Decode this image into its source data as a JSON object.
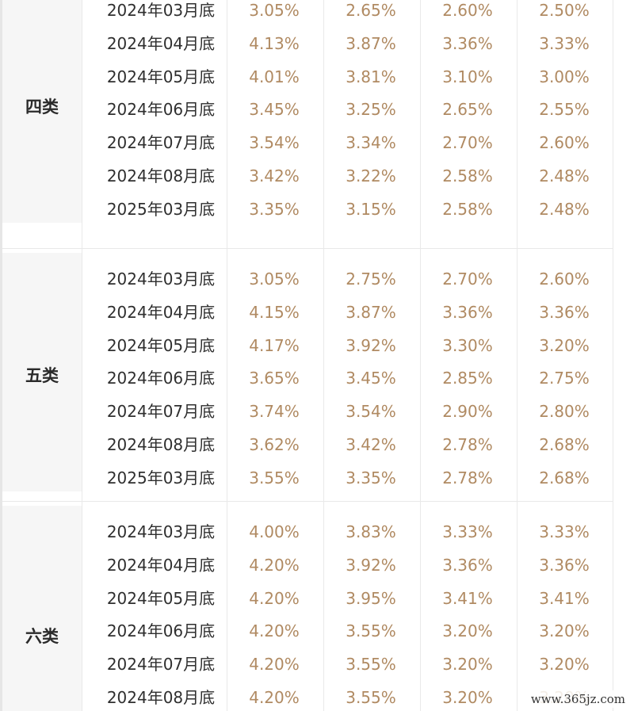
{
  "groups": [
    {
      "category": "四类",
      "rows": [
        {
          "date": "2024年03月底",
          "v1": "3.05%",
          "v2": "2.65%",
          "v3": "2.60%",
          "v4": "2.50%"
        },
        {
          "date": "2024年04月底",
          "v1": "4.13%",
          "v2": "3.87%",
          "v3": "3.36%",
          "v4": "3.33%"
        },
        {
          "date": "2024年05月底",
          "v1": "4.01%",
          "v2": "3.81%",
          "v3": "3.10%",
          "v4": "3.00%"
        },
        {
          "date": "2024年06月底",
          "v1": "3.45%",
          "v2": "3.25%",
          "v3": "2.65%",
          "v4": "2.55%"
        },
        {
          "date": "2024年07月底",
          "v1": "3.54%",
          "v2": "3.34%",
          "v3": "2.70%",
          "v4": "2.60%"
        },
        {
          "date": "2024年08月底",
          "v1": "3.42%",
          "v2": "3.22%",
          "v3": "2.58%",
          "v4": "2.48%"
        },
        {
          "date": "2025年03月底",
          "v1": "3.35%",
          "v2": "3.15%",
          "v3": "2.58%",
          "v4": "2.48%"
        }
      ]
    },
    {
      "category": "五类",
      "rows": [
        {
          "date": "2024年03月底",
          "v1": "3.05%",
          "v2": "2.75%",
          "v3": "2.70%",
          "v4": "2.60%"
        },
        {
          "date": "2024年04月底",
          "v1": "4.15%",
          "v2": "3.87%",
          "v3": "3.36%",
          "v4": "3.36%"
        },
        {
          "date": "2024年05月底",
          "v1": "4.17%",
          "v2": "3.92%",
          "v3": "3.30%",
          "v4": "3.20%"
        },
        {
          "date": "2024年06月底",
          "v1": "3.65%",
          "v2": "3.45%",
          "v3": "2.85%",
          "v4": "2.75%"
        },
        {
          "date": "2024年07月底",
          "v1": "3.74%",
          "v2": "3.54%",
          "v3": "2.90%",
          "v4": "2.80%"
        },
        {
          "date": "2024年08月底",
          "v1": "3.62%",
          "v2": "3.42%",
          "v3": "2.78%",
          "v4": "2.68%"
        },
        {
          "date": "2025年03月底",
          "v1": "3.55%",
          "v2": "3.35%",
          "v3": "2.78%",
          "v4": "2.68%"
        }
      ]
    },
    {
      "category": "六类",
      "rows": [
        {
          "date": "2024年03月底",
          "v1": "4.00%",
          "v2": "3.83%",
          "v3": "3.33%",
          "v4": "3.33%"
        },
        {
          "date": "2024年04月底",
          "v1": "4.20%",
          "v2": "3.92%",
          "v3": "3.36%",
          "v4": "3.36%"
        },
        {
          "date": "2024年05月底",
          "v1": "4.20%",
          "v2": "3.95%",
          "v3": "3.41%",
          "v4": "3.41%"
        },
        {
          "date": "2024年06月底",
          "v1": "4.20%",
          "v2": "3.55%",
          "v3": "3.20%",
          "v4": "3.20%"
        },
        {
          "date": "2024年07月底",
          "v1": "4.20%",
          "v2": "3.55%",
          "v3": "3.20%",
          "v4": "3.20%"
        },
        {
          "date": "2024年08月底",
          "v1": "4.20%",
          "v2": "3.55%",
          "v3": "3.20%",
          "v4": "3.20%"
        }
      ]
    }
  ],
  "watermark": "www.365jz.com",
  "colors": {
    "value_text": "#b08a62",
    "date_text": "#2f2f2f",
    "category_bg": "#f6f6f6",
    "grid_line": "#e9e9e9"
  }
}
